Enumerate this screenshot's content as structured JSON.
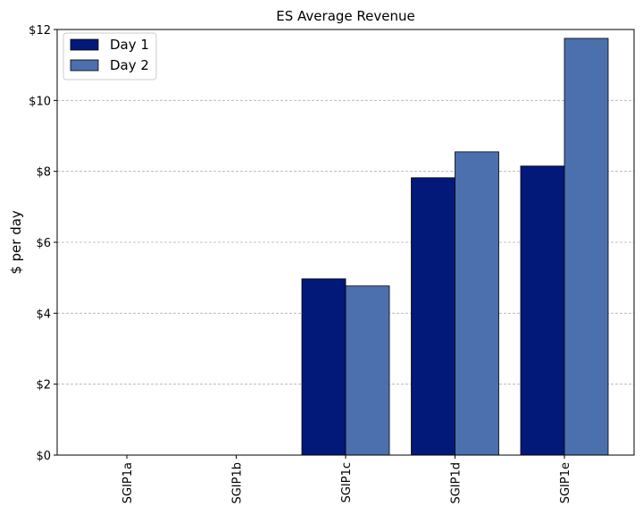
{
  "chart_data": {
    "type": "bar",
    "title": "ES Average Revenue",
    "xlabel": "",
    "ylabel": "$ per day",
    "categories": [
      "SGIP1a",
      "SGIP1b",
      "SGIP1c",
      "SGIP1d",
      "SGIP1e"
    ],
    "series": [
      {
        "name": "Day 1",
        "color": "#02197a",
        "values": [
          0,
          0,
          4.97,
          7.82,
          8.15
        ]
      },
      {
        "name": "Day 2",
        "color": "#4c6fae",
        "values": [
          0,
          0,
          4.77,
          8.55,
          11.75
        ]
      }
    ],
    "ylim": [
      0,
      12
    ],
    "yticks": [
      0,
      2,
      4,
      6,
      8,
      10,
      12
    ],
    "ytick_labels": [
      "$0",
      "$2",
      "$4",
      "$6",
      "$8",
      "$10",
      "$12"
    ],
    "grid": "horizontal-dashed",
    "legend_position": "top-left"
  }
}
